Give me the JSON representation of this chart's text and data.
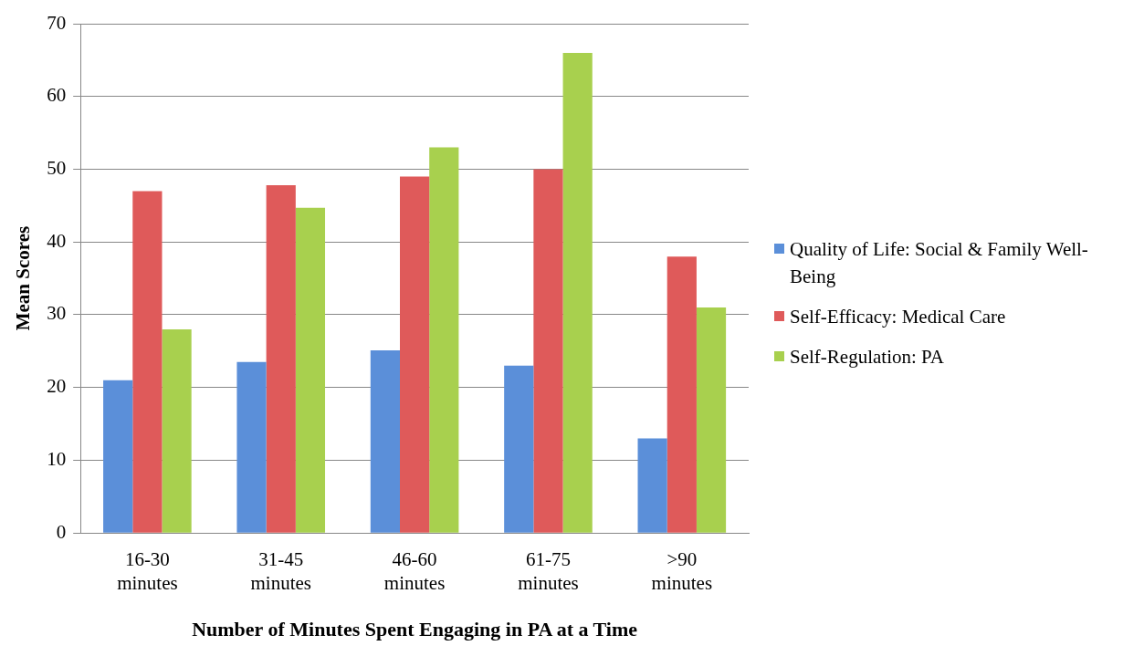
{
  "chart_data": {
    "type": "bar",
    "xlabel": "Number of Minutes Spent Engaging in PA at a Time",
    "ylabel": "Mean Scores",
    "categories": [
      "16-30 minutes",
      "31-45 minutes",
      "46-60 minutes",
      "61-75 minutes",
      ">90 minutes"
    ],
    "series": [
      {
        "name": "Quality of Life: Social & Family Well-Being",
        "color": "#5b8fd9",
        "values": [
          21,
          23.5,
          25.1,
          23,
          13
        ]
      },
      {
        "name": "Self-Efficacy: Medical Care",
        "color": "#df5a5a",
        "values": [
          47,
          47.8,
          49,
          50,
          38
        ]
      },
      {
        "name": "Self-Regulation: PA",
        "color": "#a8d04e",
        "values": [
          28,
          44.7,
          53,
          66,
          31
        ]
      }
    ],
    "ylim": [
      0,
      70
    ],
    "yticks": [
      0,
      10,
      20,
      30,
      40,
      50,
      60,
      70
    ],
    "grid": "y",
    "legend": "right"
  }
}
